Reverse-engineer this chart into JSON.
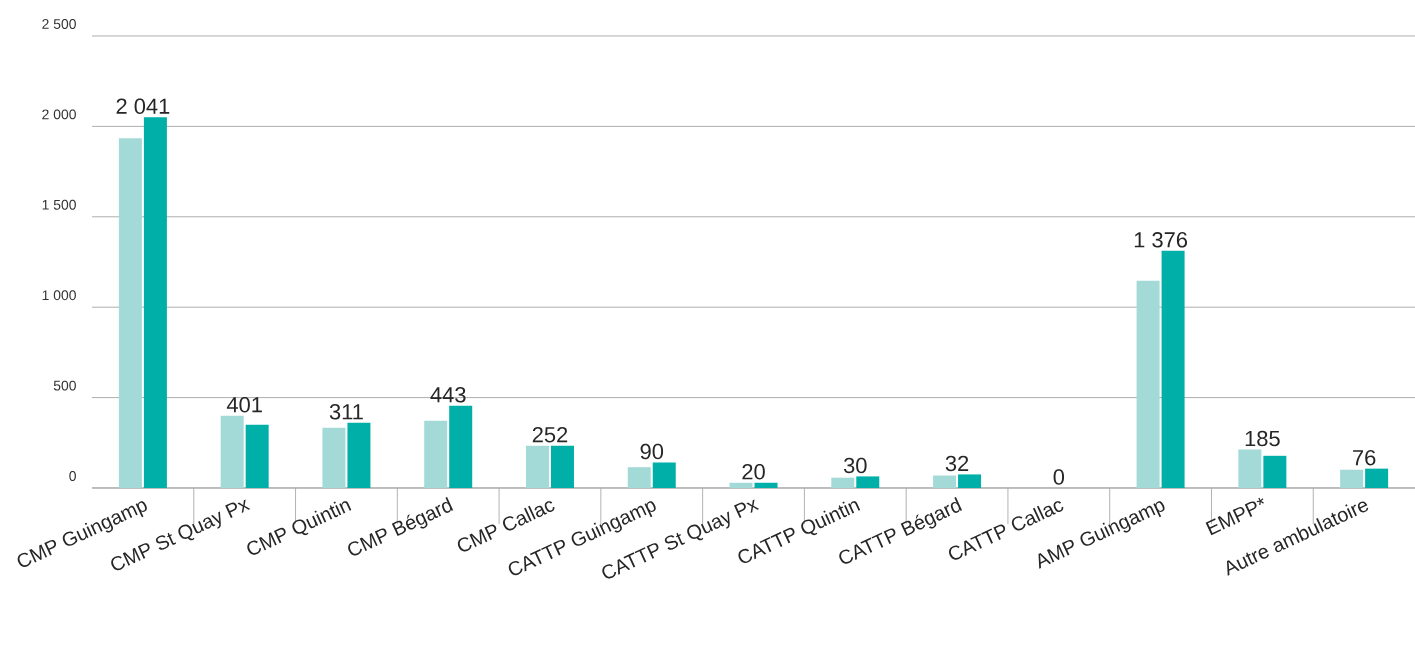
{
  "chart_data": {
    "type": "bar",
    "categories": [
      "CMP Guingamp",
      "CMP St Quay Px",
      "CMP Quintin",
      "CMP Bégard",
      "CMP Callac",
      "CATTP Guingamp",
      "CATTP St Quay Px",
      "CATTP Quintin",
      "CATTP Bégard",
      "CATTP Callac",
      "AMP Guingamp",
      "EMPP*",
      "Autre ambulatoire"
    ],
    "series": [
      {
        "color": "#a3dad7",
        "values": [
          1935,
          400,
          333,
          372,
          234,
          115,
          29,
          57,
          69,
          0,
          1146,
          213,
          101
        ]
      },
      {
        "color": "#00afa8",
        "values": [
          2051,
          350,
          361,
          455,
          234,
          141,
          29,
          64,
          75,
          0,
          1312,
          178,
          107
        ]
      }
    ],
    "ylim": [
      0,
      2500
    ],
    "yticks": [
      0,
      500,
      {
        "value": 1000,
        "label": "1 000"
      },
      {
        "value": 1500,
        "label": "1 500"
      },
      {
        "value": 2000,
        "label": "2 000"
      },
      {
        "value": 2500,
        "label": "2 500"
      }
    ],
    "grid": "y",
    "annotations": [
      {
        "text": "2 041",
        "x": "CMP Guingamp",
        "y": 2051
      },
      {
        "text": "401",
        "x": "CMP St Quay Px",
        "y": 400
      },
      {
        "text": "311",
        "x": "CMP Quintin",
        "y": 361
      },
      {
        "text": "443",
        "x": "CMP Bégard",
        "y": 455
      },
      {
        "text": "252",
        "x": "CMP Callac",
        "y": 234
      },
      {
        "text": "90",
        "x": "CATTP Guingamp",
        "y": 141
      },
      {
        "text": "20",
        "x": "CATTP St Quay Px",
        "y": 29
      },
      {
        "text": "30",
        "x": "CATTP Quintin",
        "y": 64
      },
      {
        "text": "32",
        "x": "CATTP Bégard",
        "y": 75
      },
      {
        "text": "0",
        "x": "CATTP Callac",
        "y": 0
      },
      {
        "text": "1 376",
        "x": "AMP Guingamp",
        "y": 1312
      },
      {
        "text": "185",
        "x": "EMPP*",
        "y": 213
      },
      {
        "text": "76",
        "x": "Autre ambulatoire",
        "y": 107
      }
    ]
  }
}
